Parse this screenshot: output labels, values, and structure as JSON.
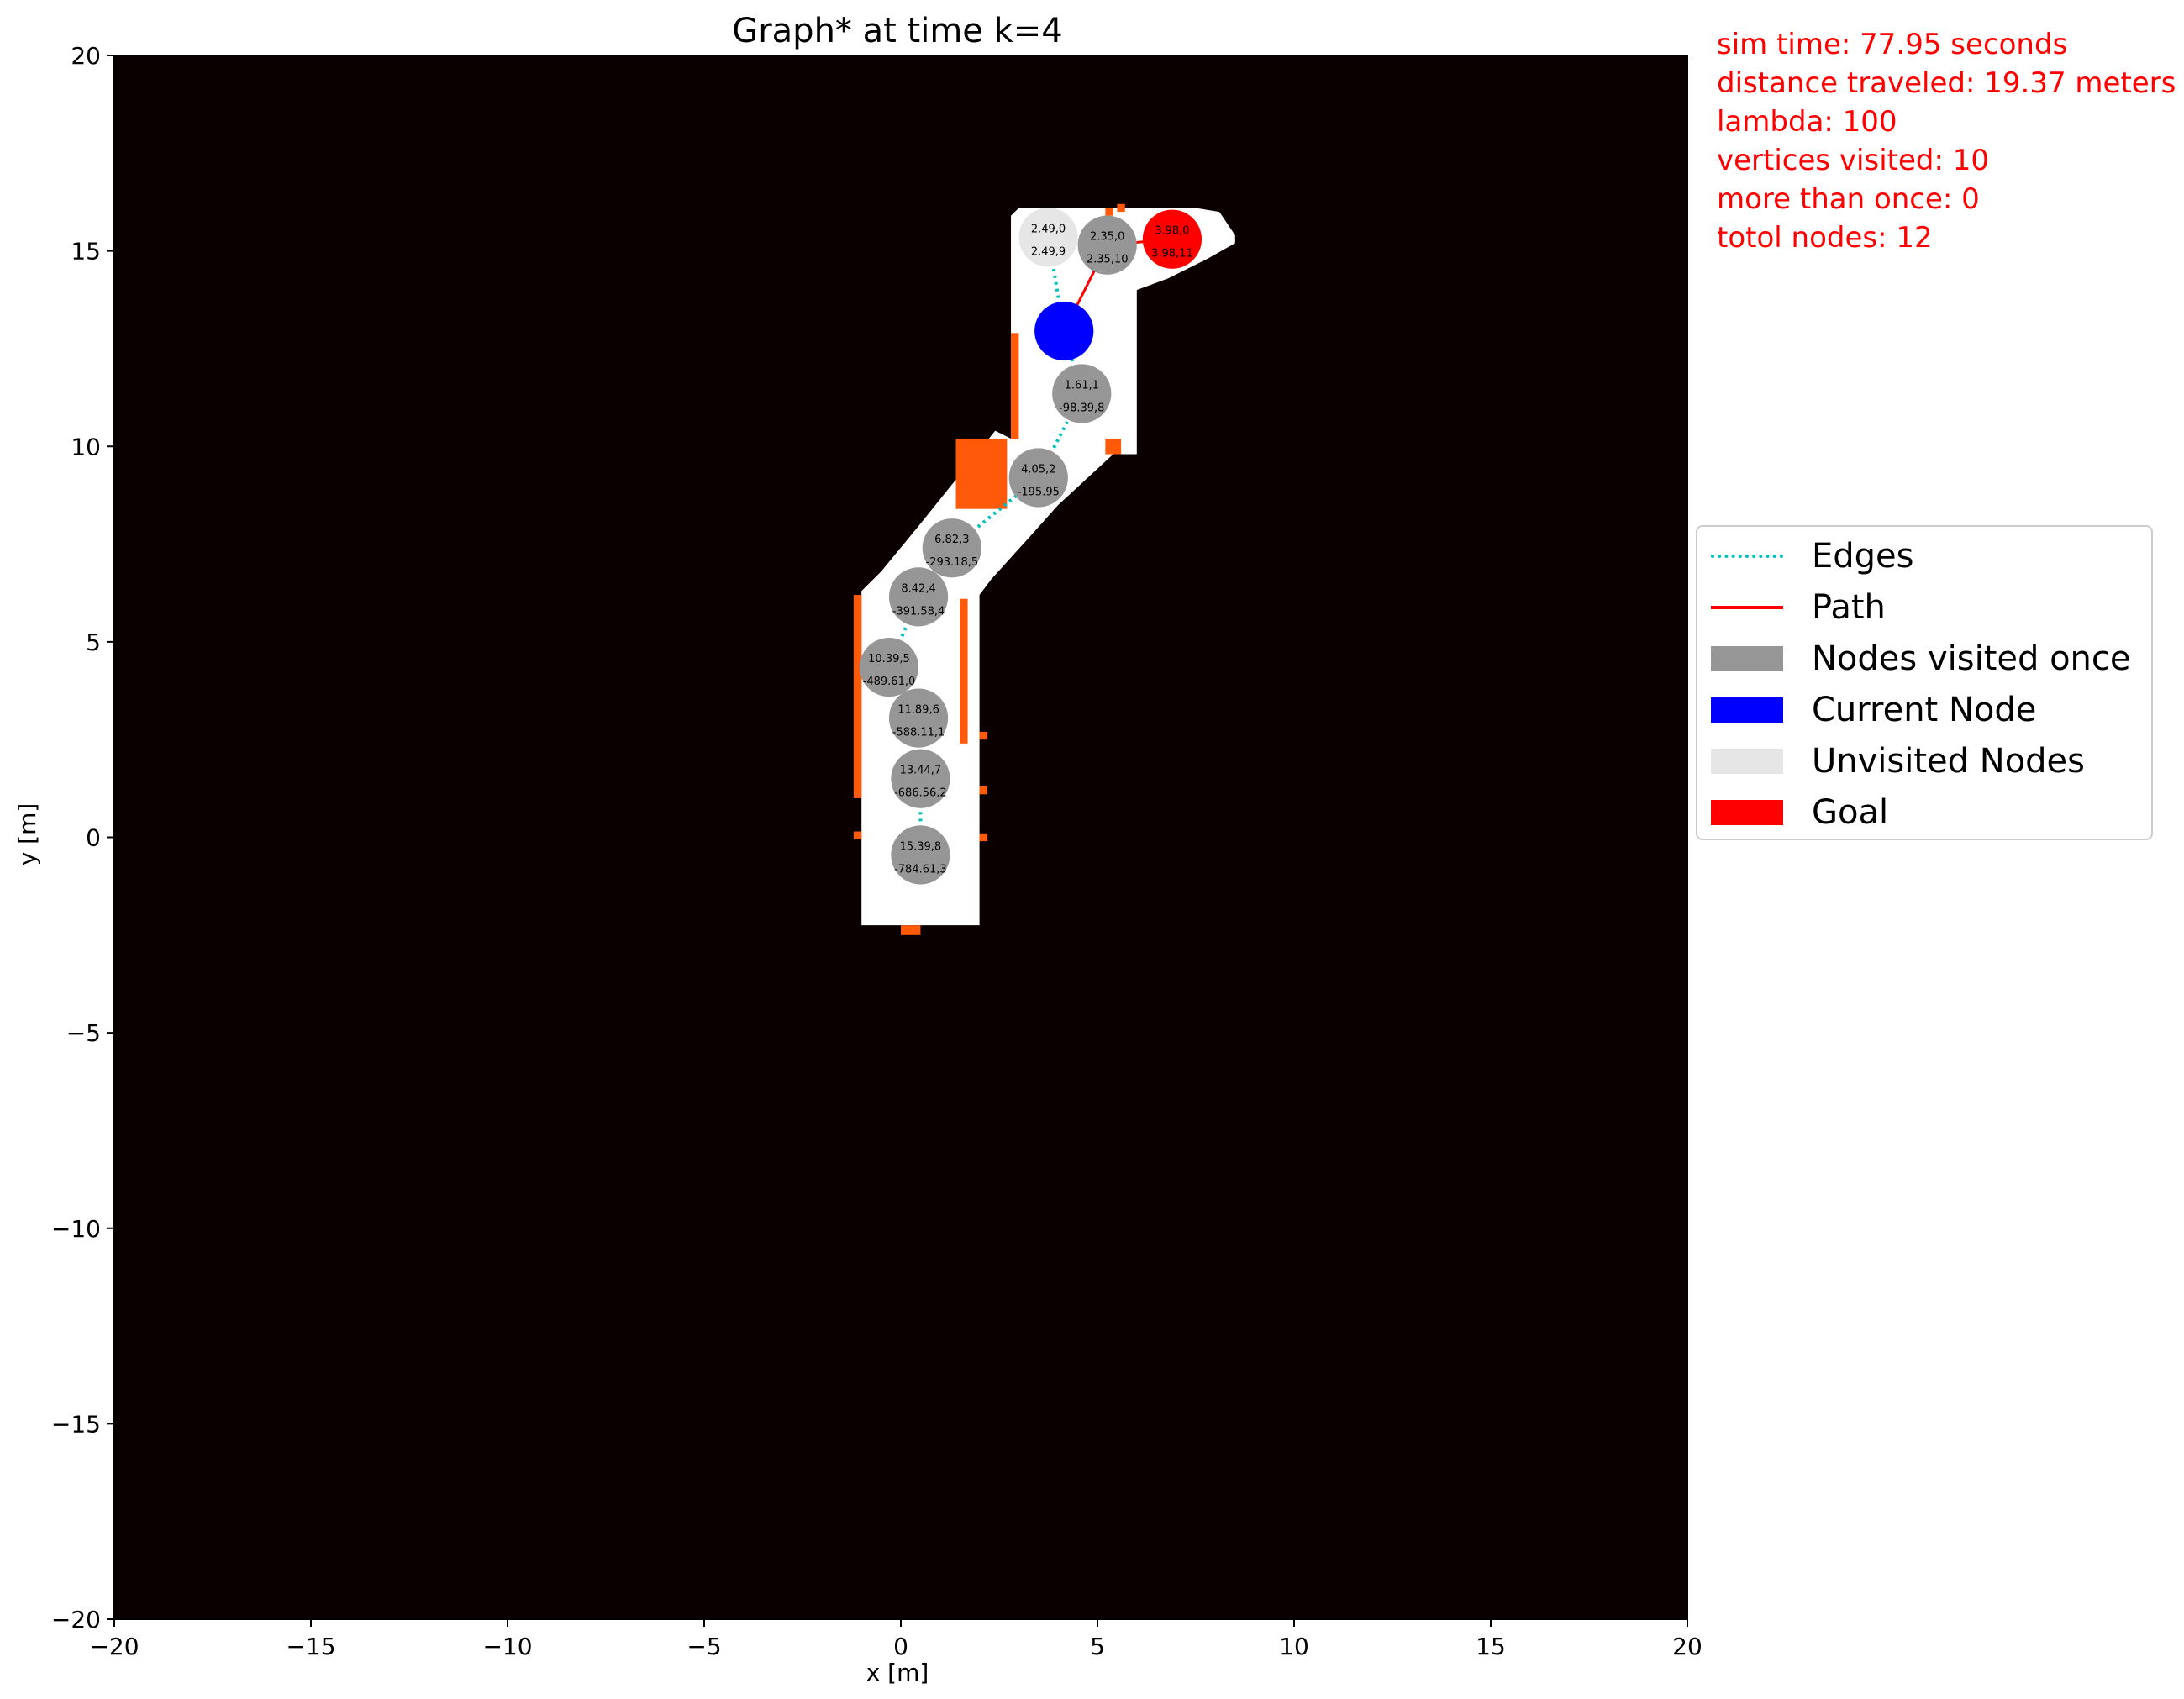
{
  "chart_data": {
    "type": "scatter",
    "title": "Graph* at time k=4",
    "xlabel": "x [m]",
    "ylabel": "y [m]",
    "xlim": [
      -20,
      20
    ],
    "ylim": [
      -20,
      20
    ],
    "xticks": [
      -20,
      -15,
      -10,
      -5,
      0,
      5,
      10,
      15,
      20
    ],
    "yticks": [
      -20,
      -15,
      -10,
      -5,
      0,
      5,
      10,
      15,
      20
    ],
    "xtick_labels": [
      "−20",
      "−15",
      "−10",
      "−5",
      "0",
      "5",
      "10",
      "15",
      "20"
    ],
    "ytick_labels": [
      "−20",
      "−15",
      "−10",
      "−5",
      "0",
      "5",
      "10",
      "15",
      "20"
    ],
    "grid": false,
    "legend_position": "right",
    "background_color": "#0b0000",
    "free_space_color": "#ffffff",
    "obstacle_color": "#ff5a0a",
    "free_space_polygon": [
      [
        -1.0,
        -2.25
      ],
      [
        2.0,
        -2.25
      ],
      [
        2.0,
        6.2
      ],
      [
        2.3,
        6.6
      ],
      [
        3.2,
        7.6
      ],
      [
        4.0,
        8.5
      ],
      [
        5.4,
        9.8
      ],
      [
        6.0,
        9.8
      ],
      [
        6.0,
        14.0
      ],
      [
        6.8,
        14.3
      ],
      [
        7.8,
        14.8
      ],
      [
        8.5,
        15.2
      ],
      [
        8.5,
        15.4
      ],
      [
        8.1,
        16.0
      ],
      [
        7.5,
        16.1
      ],
      [
        3.0,
        16.1
      ],
      [
        2.8,
        15.9
      ],
      [
        2.8,
        10.2
      ],
      [
        2.4,
        10.4
      ],
      [
        1.6,
        9.4
      ],
      [
        0.4,
        7.9
      ],
      [
        -0.5,
        6.8
      ],
      [
        -1.0,
        6.3
      ]
    ],
    "obstacle_segments": [
      {
        "x": [
          -1.2,
          -1.0
        ],
        "y": [
          1.0,
          6.2
        ]
      },
      {
        "x": [
          -1.2,
          -1.0
        ],
        "y": [
          -0.05,
          0.15
        ]
      },
      {
        "x": [
          1.5,
          1.7
        ],
        "y": [
          2.4,
          6.1
        ]
      },
      {
        "x": [
          2.0,
          2.2
        ],
        "y": [
          2.5,
          2.7
        ]
      },
      {
        "x": [
          2.0,
          2.2
        ],
        "y": [
          1.1,
          1.3
        ]
      },
      {
        "x": [
          2.0,
          2.2
        ],
        "y": [
          -0.1,
          0.1
        ]
      },
      {
        "x": [
          0.0,
          0.5
        ],
        "y": [
          -2.5,
          -2.25
        ]
      },
      {
        "x": [
          2.8,
          3.0
        ],
        "y": [
          10.2,
          12.9
        ]
      },
      {
        "x": [
          1.4,
          2.7
        ],
        "y": [
          8.4,
          10.2
        ]
      },
      {
        "x": [
          5.2,
          5.6
        ],
        "y": [
          9.8,
          10.2
        ]
      },
      {
        "x": [
          5.2,
          5.4
        ],
        "y": [
          15.9,
          16.1
        ]
      },
      {
        "x": [
          5.5,
          5.7
        ],
        "y": [
          16.0,
          16.2
        ]
      }
    ],
    "edges": [
      {
        "x": [
          0.5,
          0.5
        ],
        "y": [
          -0.45,
          1.5
        ]
      },
      {
        "x": [
          0.5,
          0.45
        ],
        "y": [
          1.5,
          3.05
        ]
      },
      {
        "x": [
          0.45,
          -0.3
        ],
        "y": [
          3.05,
          4.35
        ]
      },
      {
        "x": [
          -0.3,
          0.45
        ],
        "y": [
          4.35,
          6.15
        ]
      },
      {
        "x": [
          0.45,
          1.3
        ],
        "y": [
          6.15,
          7.4
        ]
      },
      {
        "x": [
          1.3,
          3.5
        ],
        "y": [
          7.4,
          9.2
        ]
      },
      {
        "x": [
          3.5,
          4.6
        ],
        "y": [
          9.2,
          11.35
        ]
      },
      {
        "x": [
          4.6,
          4.15
        ],
        "y": [
          11.35,
          12.95
        ]
      },
      {
        "x": [
          4.15,
          3.75
        ],
        "y": [
          12.95,
          15.35
        ]
      },
      {
        "x": [
          3.75,
          5.25
        ],
        "y": [
          15.35,
          15.15
        ]
      }
    ],
    "path": {
      "x": [
        4.15,
        5.25,
        6.9
      ],
      "y": [
        12.95,
        15.15,
        15.3
      ]
    },
    "nodes": [
      {
        "x": 0.5,
        "y": -0.45,
        "status": "visited_once",
        "label_top": "15.39,8",
        "label_bottom": "-784.61,3"
      },
      {
        "x": 0.5,
        "y": 1.5,
        "status": "visited_once",
        "label_top": "13.44,7",
        "label_bottom": "-686.56,2"
      },
      {
        "x": 0.45,
        "y": 3.05,
        "status": "visited_once",
        "label_top": "11.89,6",
        "label_bottom": "-588.11,1"
      },
      {
        "x": -0.3,
        "y": 4.35,
        "status": "visited_once",
        "label_top": "10.39,5",
        "label_bottom": "-489.61,0"
      },
      {
        "x": 0.45,
        "y": 6.15,
        "status": "visited_once",
        "label_top": "8.42,4",
        "label_bottom": "-391.58,4"
      },
      {
        "x": 1.3,
        "y": 7.4,
        "status": "visited_once",
        "label_top": "6.82,3",
        "label_bottom": "-293.18,5"
      },
      {
        "x": 3.5,
        "y": 9.2,
        "status": "visited_once",
        "label_top": "4.05,2",
        "label_bottom": "-195.95"
      },
      {
        "x": 4.6,
        "y": 11.35,
        "status": "visited_once",
        "label_top": "1.61,1",
        "label_bottom": "-98.39,8"
      },
      {
        "x": 4.15,
        "y": 12.95,
        "status": "current",
        "label_top": "",
        "label_bottom": ""
      },
      {
        "x": 3.75,
        "y": 15.35,
        "status": "unvisited",
        "label_top": "2.49,0",
        "label_bottom": "2.49,9"
      },
      {
        "x": 5.25,
        "y": 15.15,
        "status": "visited_once",
        "label_top": "2.35,0",
        "label_bottom": "2.35,10"
      },
      {
        "x": 6.9,
        "y": 15.3,
        "status": "goal",
        "label_top": "3.98,0",
        "label_bottom": "3.98,11"
      }
    ],
    "colors": {
      "edges": "#00bfbf",
      "path": "#ff0000",
      "visited_once": "#969696",
      "current": "#0000ff",
      "unvisited": "#e6e6e6",
      "goal": "#ff0000"
    }
  },
  "legend": {
    "items": [
      {
        "label": "Edges",
        "kind": "dotted",
        "color": "#00bfbf"
      },
      {
        "label": "Path",
        "kind": "line",
        "color": "#ff0000"
      },
      {
        "label": "Nodes visited once",
        "kind": "patch",
        "color": "#969696"
      },
      {
        "label": "Current Node",
        "kind": "patch",
        "color": "#0000ff"
      },
      {
        "label": "Unvisited Nodes",
        "kind": "patch",
        "color": "#e6e6e6"
      },
      {
        "label": "Goal",
        "kind": "patch",
        "color": "#ff0000"
      }
    ]
  },
  "stats": {
    "sim_time": "sim time: 77.95 seconds",
    "distance": "distance traveled: 19.37 meters",
    "lambda": "lambda: 100",
    "vertices": "vertices visited: 10",
    "more_than_once": "more than once: 0",
    "total_nodes": "totol nodes: 12"
  }
}
